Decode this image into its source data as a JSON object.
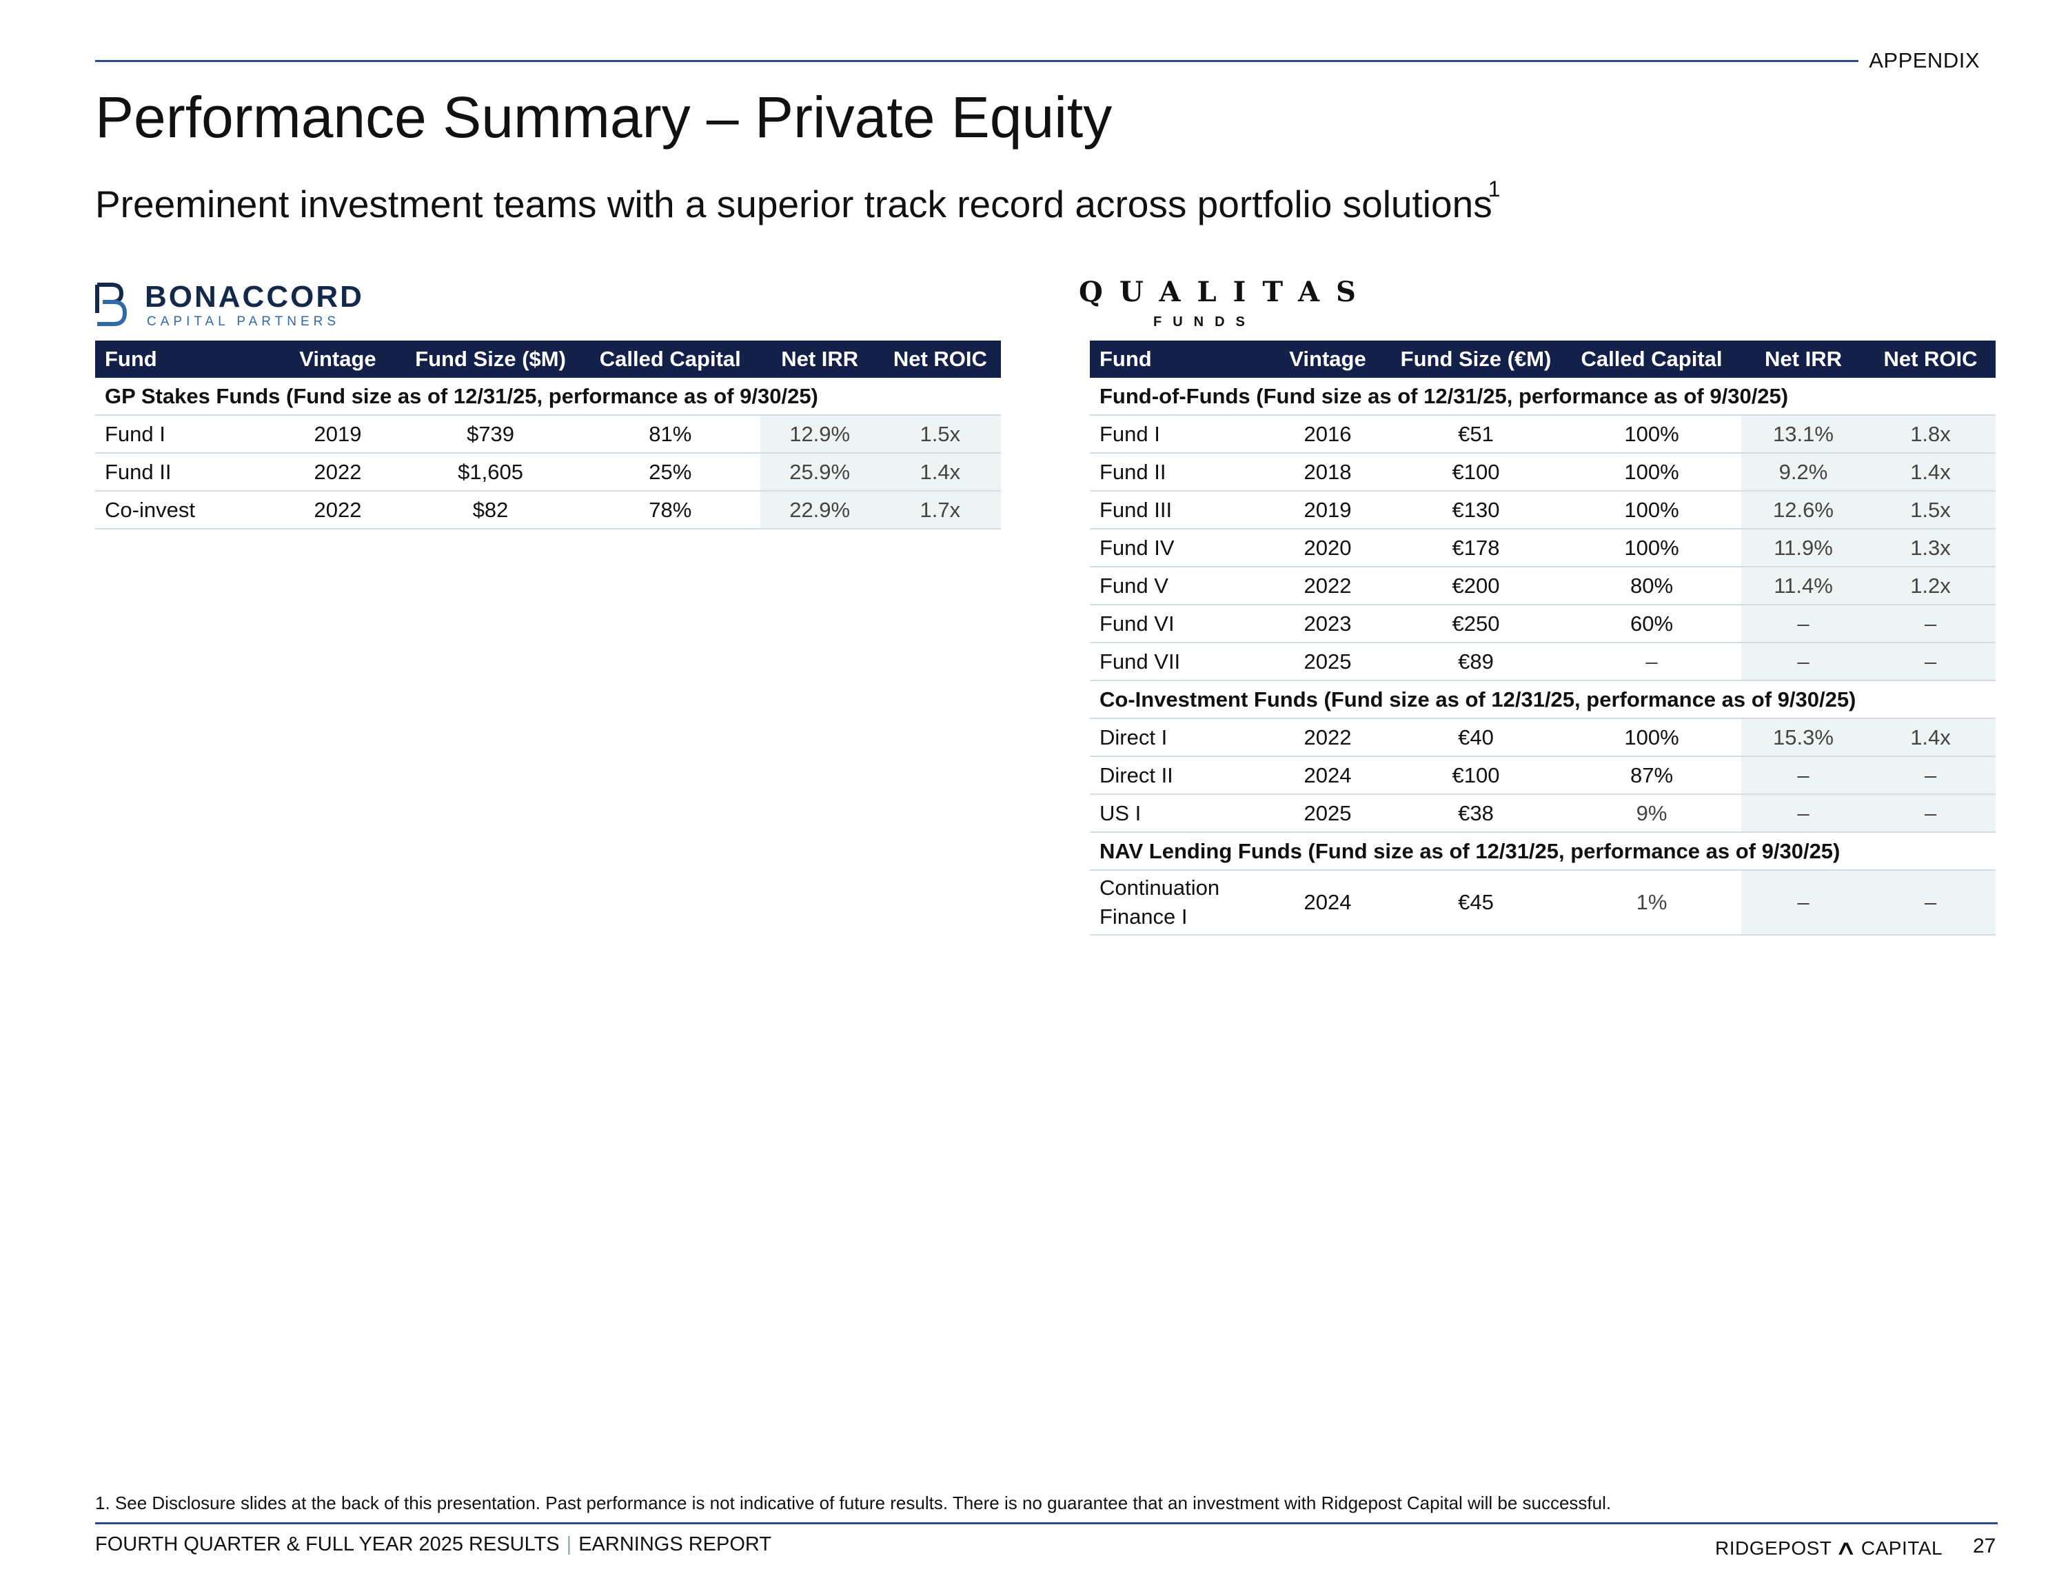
{
  "header": {
    "section_label": "APPENDIX",
    "title": "Performance Summary – Private Equity",
    "subtitle": "Preeminent investment teams with a superior track record across portfolio solutions",
    "subtitle_footnote_ref": "1"
  },
  "bonaccord": {
    "logo_name": "BONACCORD",
    "logo_sub": "CAPITAL PARTNERS",
    "columns": [
      "Fund",
      "Vintage",
      "Fund Size ($M)",
      "Called Capital",
      "Net IRR",
      "Net ROIC"
    ],
    "sections": [
      {
        "title": "GP Stakes Funds (Fund size as of 12/31/25, performance as of 9/30/25)",
        "rows": [
          {
            "fund": "Fund I",
            "vintage": "2019",
            "size": "$739",
            "called": "81%",
            "irr": "12.9%",
            "roic": "1.5x"
          },
          {
            "fund": "Fund II",
            "vintage": "2022",
            "size": "$1,605",
            "called": "25%",
            "irr": "25.9%",
            "roic": "1.4x"
          },
          {
            "fund": "Co-invest",
            "vintage": "2022",
            "size": "$82",
            "called": "78%",
            "irr": "22.9%",
            "roic": "1.7x"
          }
        ]
      }
    ]
  },
  "qualitas": {
    "logo_name": "QUALITAS",
    "logo_sub": "FUNDS",
    "columns": [
      "Fund",
      "Vintage",
      "Fund Size (€M)",
      "Called Capital",
      "Net IRR",
      "Net ROIC"
    ],
    "sections": [
      {
        "title": "Fund-of-Funds (Fund size as of 12/31/25, performance as of 9/30/25)",
        "rows": [
          {
            "fund": "Fund I",
            "vintage": "2016",
            "size": "€51",
            "called": "100%",
            "irr": "13.1%",
            "roic": "1.8x"
          },
          {
            "fund": "Fund II",
            "vintage": "2018",
            "size": "€100",
            "called": "100%",
            "irr": "9.2%",
            "roic": "1.4x"
          },
          {
            "fund": "Fund III",
            "vintage": "2019",
            "size": "€130",
            "called": "100%",
            "irr": "12.6%",
            "roic": "1.5x"
          },
          {
            "fund": "Fund IV",
            "vintage": "2020",
            "size": "€178",
            "called": "100%",
            "irr": "11.9%",
            "roic": "1.3x"
          },
          {
            "fund": "Fund V",
            "vintage": "2022",
            "size": "€200",
            "called": "80%",
            "irr": "11.4%",
            "roic": "1.2x"
          },
          {
            "fund": "Fund VI",
            "vintage": "2023",
            "size": "€250",
            "called": "60%",
            "irr": "–",
            "roic": "–"
          },
          {
            "fund": "Fund VII",
            "vintage": "2025",
            "size": "€89",
            "called": "–",
            "irr": "–",
            "roic": "–"
          }
        ]
      },
      {
        "title": "Co-Investment Funds (Fund size as of 12/31/25, performance as of 9/30/25)",
        "rows": [
          {
            "fund": "Direct I",
            "vintage": "2022",
            "size": "€40",
            "called": "100%",
            "irr": "15.3%",
            "roic": "1.4x"
          },
          {
            "fund": "Direct II",
            "vintage": "2024",
            "size": "€100",
            "called": "87%",
            "irr": "–",
            "roic": "–"
          },
          {
            "fund": "US I",
            "vintage": "2025",
            "size": "€38",
            "called": "9%",
            "irr": "–",
            "roic": "–"
          }
        ]
      },
      {
        "title": "NAV Lending Funds (Fund size as of 12/31/25, performance as of 9/30/25)",
        "rows": [
          {
            "fund": "Continuation Finance I",
            "vintage": "2024",
            "size": "€45",
            "called": "1%",
            "irr": "–",
            "roic": "–"
          }
        ]
      }
    ]
  },
  "footnote": "1.  See Disclosure slides at the back of this presentation. Past performance is not indicative of future results. There is no guarantee that an investment with Ridgepost Capital will be successful.",
  "footer": {
    "report_label": "FOURTH QUARTER & FULL YEAR 2025 RESULTS",
    "separator": "|",
    "report_type": "EARNINGS REPORT",
    "brand_left": "RIDGEPOST",
    "brand_right": "CAPITAL",
    "page_number": "27"
  },
  "colors": {
    "header_fill": "#13204A",
    "rule": "#2E4A8F",
    "shade": "#EEF4F4",
    "bonaccord_navy": "#13294B",
    "bonaccord_blue": "#2F6AA8"
  },
  "icons": [
    "bonaccord-logo-icon",
    "ridgepost-mountain-icon"
  ]
}
